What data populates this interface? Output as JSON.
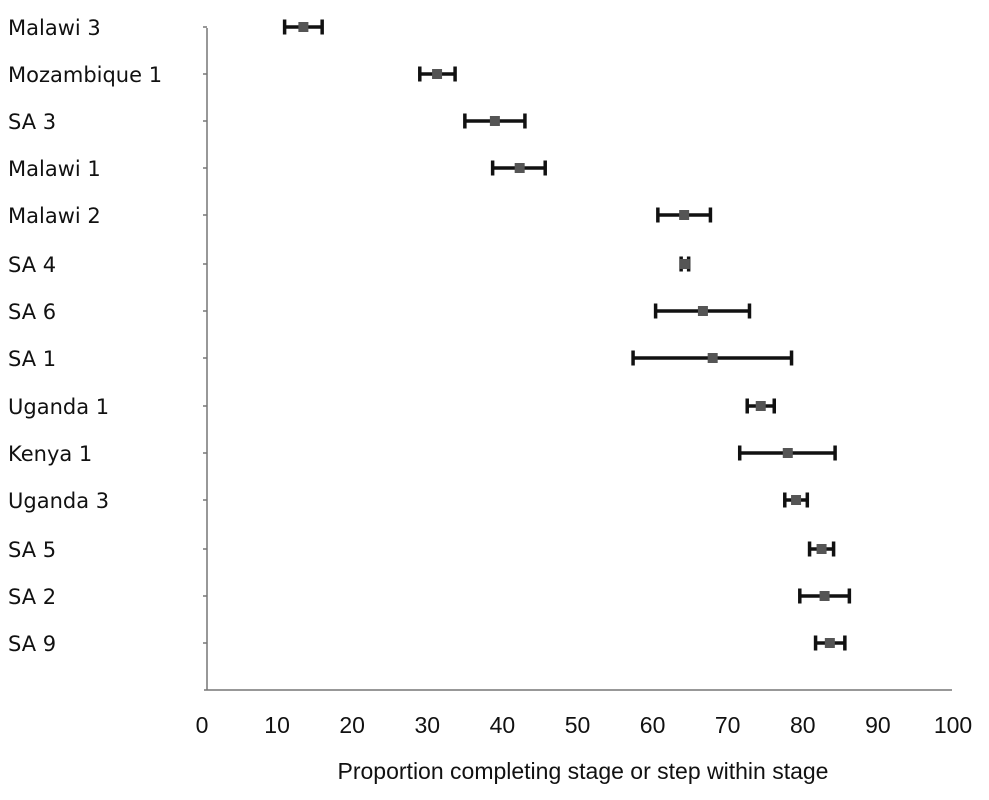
{
  "chart_data": {
    "type": "scatter",
    "orientation": "horizontal",
    "title": "",
    "xlabel": "Proportion completing stage or step within stage",
    "ylabel": "",
    "xlim": [
      0,
      100
    ],
    "xticks": [
      "0",
      "10",
      "20",
      "30",
      "40",
      "50",
      "60",
      "70",
      "80",
      "90",
      "100"
    ],
    "grid": false,
    "legend": "none",
    "marker_color": "#555555",
    "errorbar_color": "#111111",
    "points": [
      {
        "label": "Malawi 3",
        "value": 13.5,
        "low": 11,
        "high": 16
      },
      {
        "label": "Mozambique 1",
        "value": 31.3,
        "low": 29,
        "high": 33.7
      },
      {
        "label": "SA 3",
        "value": 39,
        "low": 35,
        "high": 43
      },
      {
        "label": "Malawi 1",
        "value": 42.3,
        "low": 38.7,
        "high": 45.7
      },
      {
        "label": "Malawi 2",
        "value": 64.2,
        "low": 60.7,
        "high": 67.7
      },
      {
        "label": "SA 4",
        "value": 64.3,
        "low": 63.8,
        "high": 64.8
      },
      {
        "label": "SA 6",
        "value": 66.7,
        "low": 60.4,
        "high": 72.9
      },
      {
        "label": "SA 1",
        "value": 68,
        "low": 57.4,
        "high": 78.5
      },
      {
        "label": "Uganda 1",
        "value": 74.4,
        "low": 72.6,
        "high": 76.2
      },
      {
        "label": "Kenya 1",
        "value": 78,
        "low": 71.6,
        "high": 84.3
      },
      {
        "label": "Uganda 3",
        "value": 79.1,
        "low": 77.6,
        "high": 80.6
      },
      {
        "label": "SA 5",
        "value": 82.5,
        "low": 80.9,
        "high": 84.1
      },
      {
        "label": "SA 2",
        "value": 82.9,
        "low": 79.6,
        "high": 86.2
      },
      {
        "label": "SA 9",
        "value": 83.6,
        "low": 81.7,
        "high": 85.6
      }
    ]
  }
}
